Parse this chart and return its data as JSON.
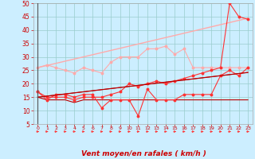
{
  "x": [
    0,
    1,
    2,
    3,
    4,
    5,
    6,
    7,
    8,
    9,
    10,
    11,
    12,
    13,
    14,
    15,
    16,
    17,
    18,
    19,
    20,
    21,
    22,
    23
  ],
  "line_rafales_jagged": [
    26,
    27,
    26,
    25,
    24,
    26,
    25,
    24,
    28,
    30,
    30,
    30,
    33,
    33,
    34,
    31,
    33,
    26,
    26,
    26,
    26,
    26,
    26,
    26
  ],
  "line_rafales_linear": [
    26,
    26.8,
    27.6,
    28.4,
    29.2,
    30,
    30.8,
    31.6,
    32.4,
    33.2,
    34,
    34.8,
    35.6,
    36.4,
    37.2,
    38,
    38.8,
    39.6,
    40.4,
    41.2,
    42,
    42.8,
    43.6,
    44.4
  ],
  "line_vent_jagged": [
    17,
    14,
    16,
    16,
    15,
    16,
    16,
    11,
    14,
    14,
    14,
    8,
    18,
    14,
    14,
    14,
    16,
    16,
    16,
    16,
    23,
    25,
    23,
    26
  ],
  "line_vent_linear1": [
    15,
    15.4,
    15.8,
    16.2,
    16.6,
    17,
    17.4,
    17.8,
    18.2,
    18.6,
    19,
    19.4,
    19.8,
    20.2,
    20.6,
    21,
    21.4,
    21.8,
    22.2,
    22.6,
    23,
    23.4,
    23.8,
    24.2
  ],
  "line_vent_linear2": [
    15,
    15.4,
    15.8,
    16.2,
    16.6,
    17,
    17.4,
    17.8,
    18.2,
    18.6,
    19,
    19.4,
    19.8,
    20.2,
    20.6,
    21,
    21.4,
    21.8,
    22.2,
    22.6,
    23,
    23.4,
    23.8,
    24.2
  ],
  "line_peak": [
    17,
    15,
    15,
    15,
    14,
    15,
    15,
    15,
    16,
    17,
    20,
    19,
    20,
    21,
    20,
    21,
    22,
    23,
    24,
    25,
    26,
    50,
    45,
    44
  ],
  "line_flat": [
    15,
    14,
    14,
    14,
    13,
    14,
    14,
    14,
    14,
    14,
    14,
    14,
    14,
    14,
    14,
    14,
    14,
    14,
    14,
    14,
    14,
    14,
    14,
    14
  ],
  "ylim": [
    5,
    50
  ],
  "xlim": [
    -0.5,
    23.5
  ],
  "yticks": [
    5,
    10,
    15,
    20,
    25,
    30,
    35,
    40,
    45,
    50
  ],
  "xlabel": "Vent moyen/en rafales ( km/h )",
  "bg_color": "#cceeff",
  "grid_color": "#99cccc",
  "color_light_pink": "#ffaaaa",
  "color_red": "#ff3333",
  "color_dark_red": "#bb0000",
  "arrow_color": "#ff3333",
  "tick_color": "#cc0000",
  "figwidth": 3.2,
  "figheight": 2.0,
  "dpi": 100
}
